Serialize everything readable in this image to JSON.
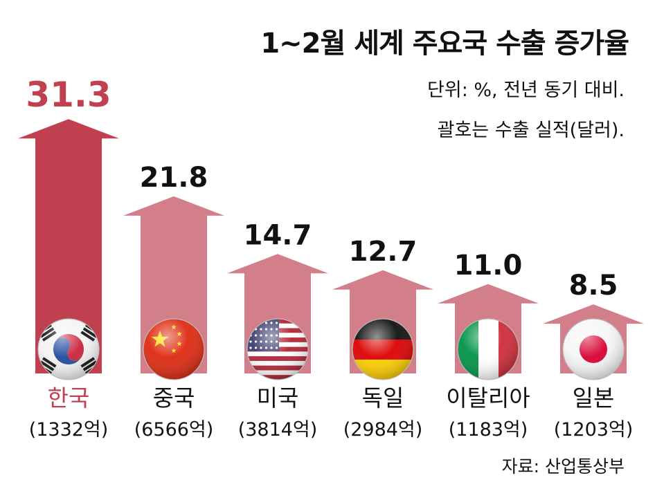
{
  "chart_data": {
    "type": "bar",
    "title": "1~2월 세계 주요국 수출 증가율",
    "subtitle_lines": [
      "단위: %, 전년 동기 대비.",
      "괄호는 수출 실적(달러)."
    ],
    "source": "자료: 산업통상부",
    "categories": [
      "한국",
      "중국",
      "미국",
      "독일",
      "이탈리아",
      "일본"
    ],
    "values": [
      31.3,
      21.8,
      14.7,
      12.7,
      11.0,
      8.5
    ],
    "value_labels": [
      "31.3",
      "21.8",
      "14.7",
      "12.7",
      "11.0",
      "8.5"
    ],
    "export_amounts": [
      "(1332억)",
      "(6566억)",
      "(3814억)",
      "(2984억)",
      "(1183억)",
      "(1203억)"
    ],
    "flags": [
      "korea-flag-icon",
      "china-flag-icon",
      "usa-flag-icon",
      "germany-flag-icon",
      "italy-flag-icon",
      "japan-flag-icon"
    ],
    "highlight_index": 0,
    "colors": {
      "highlight": "#c0404f",
      "bar": "#d37f89",
      "text": "#111111"
    }
  }
}
